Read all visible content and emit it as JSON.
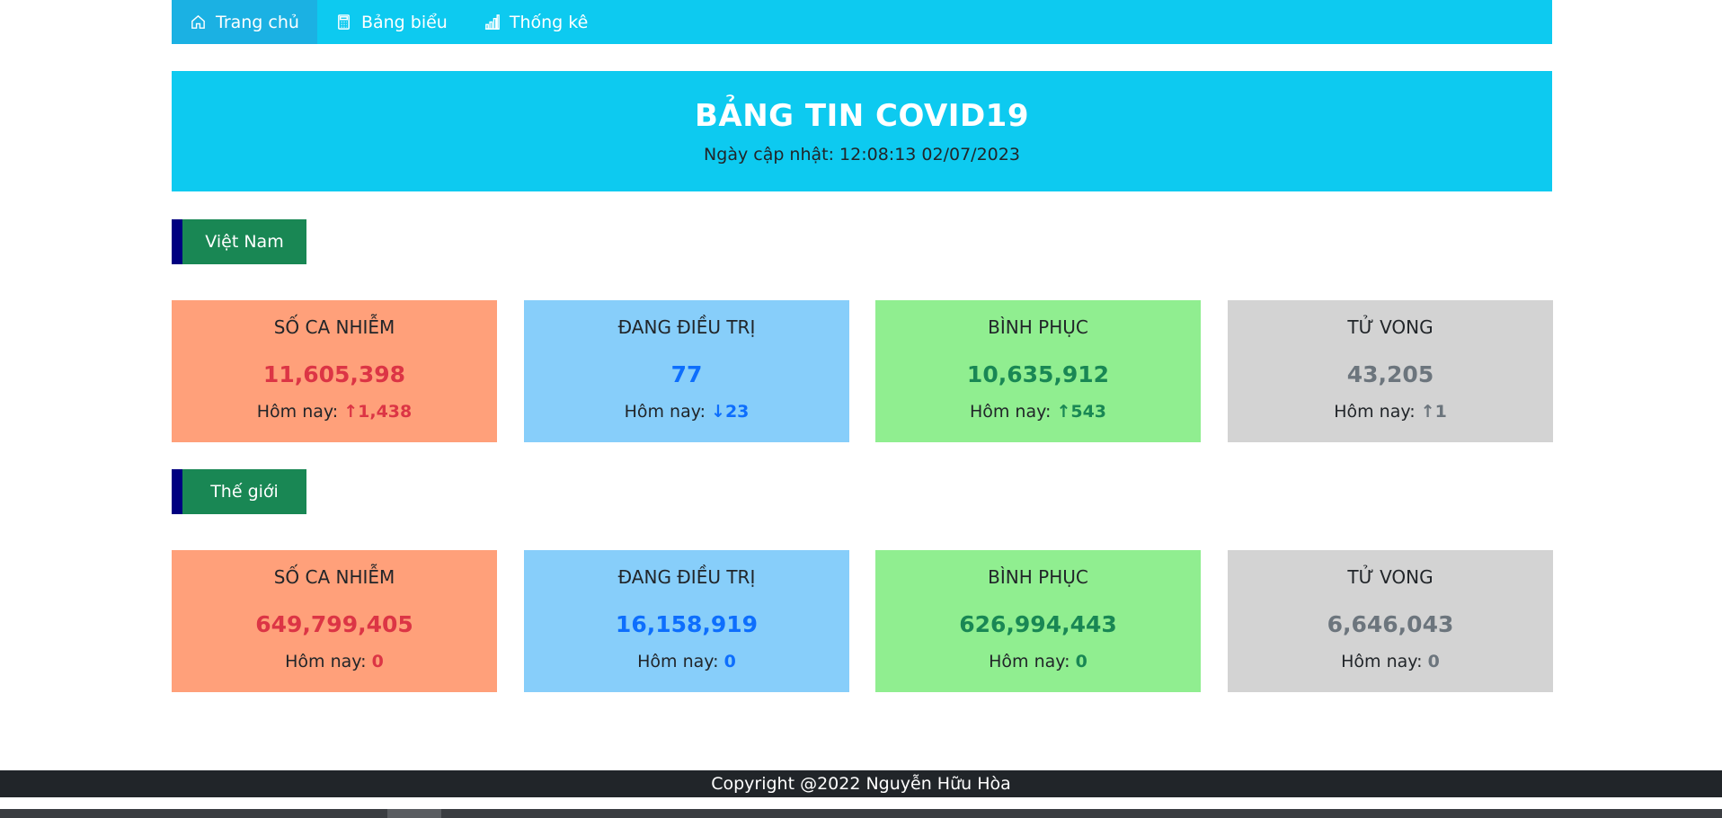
{
  "nav": {
    "items": [
      {
        "label": "Trang chủ",
        "icon": "home-icon",
        "active": true
      },
      {
        "label": "Bảng biểu",
        "icon": "calculator-icon",
        "active": false
      },
      {
        "label": "Thống kê",
        "icon": "bar-chart-icon",
        "active": false
      }
    ]
  },
  "banner": {
    "title": "BẢNG TIN COVID19",
    "updated": "Ngày cập nhật: 12:08:13 02/07/2023"
  },
  "sections": [
    {
      "label": "Việt Nam",
      "cards": [
        {
          "title": "SỐ CA NHIỄM",
          "value": "11,605,398",
          "today_label": "Hôm nay:",
          "today": "↑1,438",
          "bg": "#ffa07a",
          "color": "#dc3545"
        },
        {
          "title": "ĐANG ĐIỀU TRỊ",
          "value": "77",
          "today_label": "Hôm nay:",
          "today": "↓23",
          "bg": "#87cefa",
          "color": "#0d6efd"
        },
        {
          "title": "BÌNH PHỤC",
          "value": "10,635,912",
          "today_label": "Hôm nay:",
          "today": "↑543",
          "bg": "#90ee90",
          "color": "#198754"
        },
        {
          "title": "TỬ VONG",
          "value": "43,205",
          "today_label": "Hôm nay:",
          "today": "↑1",
          "bg": "#d3d3d3",
          "color": "#6c757d"
        }
      ]
    },
    {
      "label": "Thế giới",
      "cards": [
        {
          "title": "SỐ CA NHIỄM",
          "value": "649,799,405",
          "today_label": "Hôm nay:",
          "today": "0",
          "bg": "#ffa07a",
          "color": "#dc3545"
        },
        {
          "title": "ĐANG ĐIỀU TRỊ",
          "value": "16,158,919",
          "today_label": "Hôm nay:",
          "today": "0",
          "bg": "#87cefa",
          "color": "#0d6efd"
        },
        {
          "title": "BÌNH PHỤC",
          "value": "626,994,443",
          "today_label": "Hôm nay:",
          "today": "0",
          "bg": "#90ee90",
          "color": "#198754"
        },
        {
          "title": "TỬ VONG",
          "value": "6,646,043",
          "today_label": "Hôm nay:",
          "today": "0",
          "bg": "#d3d3d3",
          "color": "#6c757d"
        }
      ]
    }
  ],
  "footer": {
    "copyright": "Copyright @2022 Nguyễn Hữu Hòa"
  }
}
